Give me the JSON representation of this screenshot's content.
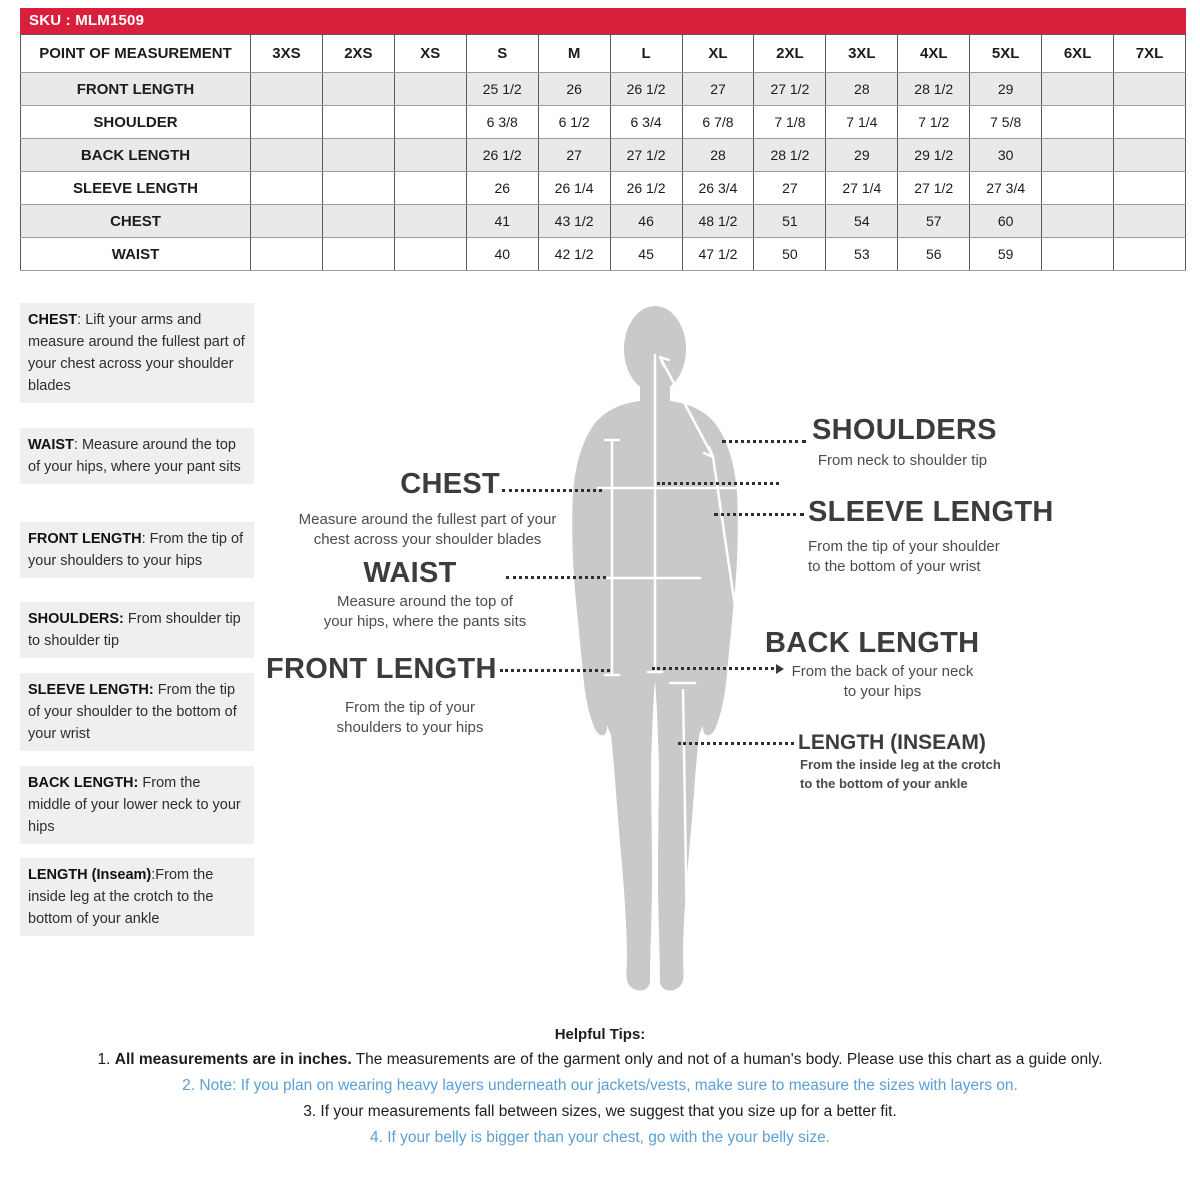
{
  "colors": {
    "sku_bar_red": "#d8203d",
    "tip_blue": "#5b9fd6",
    "silhouette_gray": "#c7c9ca"
  },
  "sku_bar": {
    "label": "SKU : MLM1509"
  },
  "size_table": {
    "header": [
      "POINT OF MEASUREMENT",
      "3XS",
      "2XS",
      "XS",
      "S",
      "M",
      "L",
      "XL",
      "2XL",
      "3XL",
      "4XL",
      "5XL",
      "6XL",
      "7XL"
    ],
    "rows": [
      {
        "label": "FRONT LENGTH",
        "values": [
          "",
          "",
          "",
          "25 1/2",
          "26",
          "26 1/2",
          "27",
          "27 1/2",
          "28",
          "28 1/2",
          "29",
          "",
          ""
        ]
      },
      {
        "label": "SHOULDER",
        "values": [
          "",
          "",
          "",
          "6 3/8",
          "6 1/2",
          "6 3/4",
          "6 7/8",
          "7 1/8",
          "7 1/4",
          "7 1/2",
          "7 5/8",
          "",
          ""
        ]
      },
      {
        "label": "BACK LENGTH",
        "values": [
          "",
          "",
          "",
          "26 1/2",
          "27",
          "27 1/2",
          "28",
          "28 1/2",
          "29",
          "29 1/2",
          "30",
          "",
          ""
        ]
      },
      {
        "label": "SLEEVE LENGTH",
        "values": [
          "",
          "",
          "",
          "26",
          "26 1/4",
          "26 1/2",
          "26 3/4",
          "27",
          "27 1/4",
          "27 1/2",
          "27 3/4",
          "",
          ""
        ]
      },
      {
        "label": "CHEST",
        "values": [
          "",
          "",
          "",
          "41",
          "43 1/2",
          "46",
          "48 1/2",
          "51",
          "54",
          "57",
          "60",
          "",
          ""
        ]
      },
      {
        "label": "WAIST",
        "values": [
          "",
          "",
          "",
          "40",
          "42 1/2",
          "45",
          "47 1/2",
          "50",
          "53",
          "56",
          "59",
          "",
          ""
        ]
      }
    ]
  },
  "definitions": [
    {
      "term": "CHEST",
      "text": ": Lift your arms  and measure around the fullest part of your chest across your shoulder blades"
    },
    {
      "term": "WAIST",
      "text": ":  Measure around the top of your hips, where your pant sits"
    },
    {
      "term": "FRONT LENGTH",
      "text": ": From the tip of your shoulders to your hips"
    },
    {
      "term": "SHOULDERS:",
      "text": " From shoulder tip to shoulder tip"
    },
    {
      "term": "SLEEVE LENGTH:",
      "text": " From the tip of your shoulder to the bottom of your wrist"
    },
    {
      "term": "BACK LENGTH:",
      "text": " From the middle of your lower neck to your hips"
    },
    {
      "term": "LENGTH (Inseam)",
      "text": ":From the inside leg at the crotch to the bottom of your ankle"
    }
  ],
  "diagram": {
    "chest": {
      "title": "CHEST",
      "desc": "Measure around the fullest part of your\nchest across your shoulder blades"
    },
    "waist": {
      "title": "WAIST",
      "desc": "Measure around the top of\nyour hips, where the pants sits"
    },
    "front_length": {
      "title": "FRONT LENGTH",
      "desc": "From the tip of your\nshoulders to your hips"
    },
    "shoulders": {
      "title": "SHOULDERS",
      "desc": "From neck to shoulder tip"
    },
    "sleeve_length": {
      "title": "SLEEVE LENGTH",
      "desc": "From the tip of your shoulder\nto the bottom of your wrist"
    },
    "back_length": {
      "title": "BACK LENGTH",
      "desc": "From the back of your neck\nto your hips"
    },
    "inseam": {
      "title": "LENGTH (INSEAM)",
      "desc": "From the inside leg at the crotch\nto the bottom of your ankle"
    }
  },
  "tips": {
    "title": "Helpful Tips:",
    "items": [
      {
        "num": "1.",
        "bold": "All measurements are in inches.",
        "text": " The measurements are of the garment only and not of a human's body. Please use this chart as a guide only.",
        "color": "dark"
      },
      {
        "num": "2.",
        "bold": "",
        "text": " Note: If you plan on wearing heavy layers underneath our jackets/vests, make sure to measure the sizes with layers on.",
        "color": "blue"
      },
      {
        "num": "3.",
        "bold": "",
        "text": " If your measurements fall between sizes, we suggest that you size up for a better fit.",
        "color": "dark"
      },
      {
        "num": "4.",
        "bold": "",
        "text": " If your belly is bigger than your chest, go with the your belly size.",
        "color": "blue"
      }
    ]
  }
}
